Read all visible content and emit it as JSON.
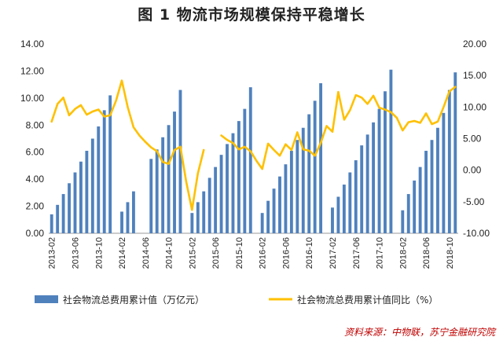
{
  "page": {
    "title": "图 1  物流市场规模保持平稳增长",
    "source": "资料来源：中物联，苏宁金融研究院"
  },
  "chart_data": {
    "type": "bar+line",
    "title": "图 1  物流市场规模保持平稳增长",
    "y_left": {
      "min": 0,
      "max": 14,
      "step": 2,
      "decimals": 2
    },
    "y_right": {
      "min": -10,
      "max": 20,
      "step": 5,
      "decimals": 2
    },
    "x_tick_labels": [
      "2013-02",
      "2013-06",
      "2013-10",
      "2014-02",
      "2014-06",
      "2014-10",
      "2015-02",
      "2015-06",
      "2015-10",
      "2016-02",
      "2016-06",
      "2016-10",
      "2017-02",
      "2017-06",
      "2017-10",
      "2018-02",
      "2018-06",
      "2018-10"
    ],
    "months": [
      "2013-02",
      "2013-03",
      "2013-04",
      "2013-05",
      "2013-06",
      "2013-07",
      "2013-08",
      "2013-09",
      "2013-10",
      "2013-11",
      "2013-12",
      "2014-01",
      "2014-02",
      "2014-03",
      "2014-04",
      "2014-05",
      "2014-06",
      "2014-07",
      "2014-08",
      "2014-09",
      "2014-10",
      "2014-11",
      "2014-12",
      "2015-01",
      "2015-02",
      "2015-03",
      "2015-04",
      "2015-05",
      "2015-06",
      "2015-07",
      "2015-08",
      "2015-09",
      "2015-10",
      "2015-11",
      "2015-12",
      "2016-01",
      "2016-02",
      "2016-03",
      "2016-04",
      "2016-05",
      "2016-06",
      "2016-07",
      "2016-08",
      "2016-09",
      "2016-10",
      "2016-11",
      "2016-12",
      "2017-01",
      "2017-02",
      "2017-03",
      "2017-04",
      "2017-05",
      "2017-06",
      "2017-07",
      "2017-08",
      "2017-09",
      "2017-10",
      "2017-11",
      "2017-12",
      "2018-01",
      "2018-02",
      "2018-03",
      "2018-04",
      "2018-05",
      "2018-06",
      "2018-07",
      "2018-08",
      "2018-09",
      "2018-10",
      "2018-11"
    ],
    "series": [
      {
        "name": "社会物流总费用累计值（万亿元）",
        "type": "bar",
        "axis": "left",
        "color": "#4f81bd",
        "values": [
          1.4,
          2.1,
          2.9,
          3.7,
          4.5,
          5.3,
          6.1,
          7.0,
          7.9,
          9.1,
          10.2,
          null,
          1.6,
          2.3,
          3.1,
          null,
          null,
          5.5,
          6.2,
          7.1,
          8.0,
          9.0,
          10.6,
          null,
          1.5,
          2.3,
          3.1,
          4.1,
          4.9,
          5.8,
          6.6,
          7.4,
          8.3,
          9.2,
          10.8,
          null,
          1.5,
          2.4,
          3.3,
          4.2,
          5.1,
          6.1,
          6.9,
          7.8,
          8.8,
          9.8,
          11.1,
          null,
          1.9,
          2.7,
          3.6,
          4.5,
          5.4,
          6.5,
          7.3,
          8.2,
          9.2,
          10.5,
          12.1,
          null,
          1.7,
          2.9,
          3.9,
          4.9,
          6.1,
          6.9,
          7.8,
          8.9,
          10.6,
          11.9
        ]
      },
      {
        "name": "社会物流总费用累计值同比（%）",
        "type": "line",
        "axis": "right",
        "color": "#ffc000",
        "values": [
          7.7,
          10.5,
          11.5,
          8.7,
          9.7,
          10.3,
          8.8,
          9.3,
          9.6,
          8.5,
          8.7,
          11.0,
          14.2,
          10.0,
          6.8,
          5.5,
          4.5,
          3.6,
          3.0,
          1.3,
          1.0,
          3.2,
          3.7,
          -1.8,
          -6.3,
          -0.5,
          3.2,
          null,
          null,
          5.5,
          4.8,
          4.3,
          3.3,
          3.7,
          3.0,
          1.5,
          0.2,
          4.2,
          3.2,
          2.3,
          4.1,
          3.2,
          6.0,
          3.3,
          3.1,
          2.3,
          4.3,
          7.0,
          6.1,
          12.4,
          8.0,
          9.5,
          11.9,
          11.5,
          10.5,
          11.8,
          9.9,
          9.6,
          9.2,
          8.3,
          6.3,
          7.6,
          7.8,
          7.5,
          9.0,
          7.3,
          7.7,
          10.0,
          12.5,
          13.2
        ]
      }
    ],
    "legend": {
      "position": "bottom"
    },
    "grid": false
  }
}
